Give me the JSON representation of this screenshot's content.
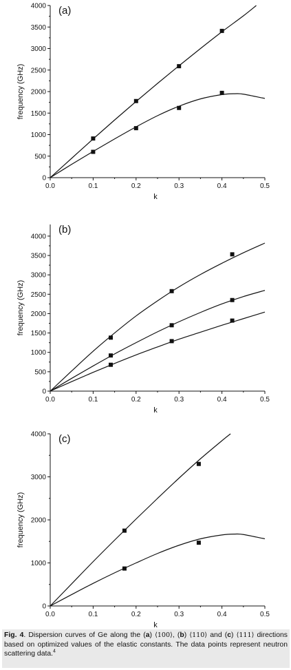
{
  "chart_data": [
    {
      "type": "line",
      "panel_label": "(a)",
      "xlabel": "k",
      "ylabel": "frequency (GHz)",
      "xlim": [
        0,
        0.5
      ],
      "ylim": [
        0,
        4000
      ],
      "x_ticks": [
        0.0,
        0.1,
        0.2,
        0.3,
        0.4,
        0.5
      ],
      "x_tick_labels": [
        "0.0",
        "0.1",
        "0.2",
        "0.3",
        "0.4",
        "0.5"
      ],
      "y_ticks": [
        0,
        500,
        1000,
        1500,
        2000,
        2500,
        3000,
        3500,
        4000
      ],
      "y_tick_labels": [
        "0",
        "500",
        "1000",
        "1500",
        "2000",
        "2500",
        "3000",
        "3500",
        "4000"
      ],
      "grid": false,
      "legend": "none",
      "series": [
        {
          "kind": "curve",
          "x": [
            0,
            0.05,
            0.1,
            0.15,
            0.2,
            0.25,
            0.3,
            0.35,
            0.4,
            0.45,
            0.48
          ],
          "y": [
            0,
            450,
            900,
            1340,
            1770,
            2190,
            2600,
            3000,
            3390,
            3760,
            4000
          ]
        },
        {
          "kind": "curve",
          "x": [
            0,
            0.05,
            0.1,
            0.15,
            0.2,
            0.25,
            0.3,
            0.35,
            0.4,
            0.43,
            0.45,
            0.5
          ],
          "y": [
            0,
            310,
            610,
            900,
            1180,
            1440,
            1660,
            1830,
            1930,
            1950,
            1940,
            1840
          ]
        },
        {
          "kind": "points",
          "x": [
            0.1,
            0.2,
            0.3,
            0.4
          ],
          "y": [
            910,
            1780,
            2590,
            3410
          ]
        },
        {
          "kind": "points",
          "x": [
            0.1,
            0.2,
            0.3,
            0.4
          ],
          "y": [
            600,
            1150,
            1620,
            1970
          ]
        }
      ]
    },
    {
      "type": "line",
      "panel_label": "(b)",
      "xlabel": "k",
      "ylabel": "frequency (GHz)",
      "xlim": [
        0,
        0.5
      ],
      "ylim": [
        0,
        4300
      ],
      "x_ticks": [
        0.0,
        0.1,
        0.2,
        0.3,
        0.4,
        0.5
      ],
      "x_tick_labels": [
        "0.0",
        "0.1",
        "0.2",
        "0.3",
        "0.4",
        "0.5"
      ],
      "y_ticks": [
        0,
        500,
        1000,
        1500,
        2000,
        2500,
        3000,
        3500,
        4000
      ],
      "y_tick_labels": [
        "0",
        "500",
        "1000",
        "1500",
        "2000",
        "2500",
        "3000",
        "3500",
        "4000"
      ],
      "grid": false,
      "legend": "none",
      "series": [
        {
          "kind": "curve",
          "x": [
            0,
            0.05,
            0.1,
            0.15,
            0.2,
            0.25,
            0.3,
            0.35,
            0.4,
            0.45,
            0.5
          ],
          "y": [
            0,
            520,
            1030,
            1500,
            1940,
            2330,
            2690,
            3010,
            3300,
            3570,
            3820
          ]
        },
        {
          "kind": "curve",
          "x": [
            0,
            0.05,
            0.1,
            0.15,
            0.2,
            0.25,
            0.3,
            0.35,
            0.4,
            0.45,
            0.5
          ],
          "y": [
            0,
            330,
            650,
            960,
            1250,
            1530,
            1790,
            2030,
            2250,
            2440,
            2600
          ]
        },
        {
          "kind": "curve",
          "x": [
            0,
            0.05,
            0.1,
            0.15,
            0.2,
            0.25,
            0.3,
            0.35,
            0.4,
            0.45,
            0.5
          ],
          "y": [
            0,
            245,
            485,
            715,
            935,
            1140,
            1340,
            1520,
            1700,
            1870,
            2040
          ]
        },
        {
          "kind": "points",
          "x": [
            0.141,
            0.283,
            0.424
          ],
          "y": [
            1380,
            2580,
            3530
          ]
        },
        {
          "kind": "points",
          "x": [
            0.141,
            0.283,
            0.424
          ],
          "y": [
            920,
            1700,
            2350
          ]
        },
        {
          "kind": "points",
          "x": [
            0.141,
            0.283,
            0.424
          ],
          "y": [
            680,
            1290,
            1820
          ]
        }
      ]
    },
    {
      "type": "line",
      "panel_label": "(c)",
      "xlabel": "k",
      "ylabel": "frequency (GHz)",
      "xlim": [
        0,
        0.5
      ],
      "ylim": [
        0,
        4000
      ],
      "x_ticks": [
        0.0,
        0.1,
        0.2,
        0.3,
        0.4,
        0.5
      ],
      "x_tick_labels": [
        "0.0",
        "0.1",
        "0.2",
        "0.3",
        "0.4",
        "0.5"
      ],
      "y_ticks": [
        0,
        1000,
        2000,
        3000,
        4000
      ],
      "y_tick_labels": [
        "0",
        "1000",
        "2000",
        "3000",
        "4000"
      ],
      "grid": false,
      "legend": "none",
      "series": [
        {
          "kind": "curve",
          "x": [
            0,
            0.05,
            0.1,
            0.15,
            0.2,
            0.25,
            0.3,
            0.35,
            0.4,
            0.42
          ],
          "y": [
            0,
            515,
            1030,
            1530,
            2020,
            2500,
            2970,
            3420,
            3840,
            4000
          ]
        },
        {
          "kind": "curve",
          "x": [
            0,
            0.05,
            0.1,
            0.15,
            0.2,
            0.25,
            0.3,
            0.35,
            0.4,
            0.43,
            0.45,
            0.5
          ],
          "y": [
            0,
            265,
            525,
            770,
            1000,
            1220,
            1410,
            1560,
            1650,
            1670,
            1660,
            1560
          ]
        },
        {
          "kind": "points",
          "x": [
            0.173,
            0.346
          ],
          "y": [
            1750,
            3300
          ]
        },
        {
          "kind": "points",
          "x": [
            0.173,
            0.346
          ],
          "y": [
            870,
            1470
          ]
        }
      ]
    }
  ],
  "caption": {
    "label": "Fig. 4",
    "text_1": ". Dispersion curves of Ge along the (",
    "a": "a",
    "dir_a": "⟨100⟩",
    "text_2": ", (",
    "b": "b",
    "dir_b": "⟨110⟩",
    "text_3": " and (",
    "c": "c",
    "dir_c": "⟨111⟩",
    "text_4": " directions based on optimized values of the elastic constants. The data points represent neutron scattering data.",
    "ref": "4"
  }
}
